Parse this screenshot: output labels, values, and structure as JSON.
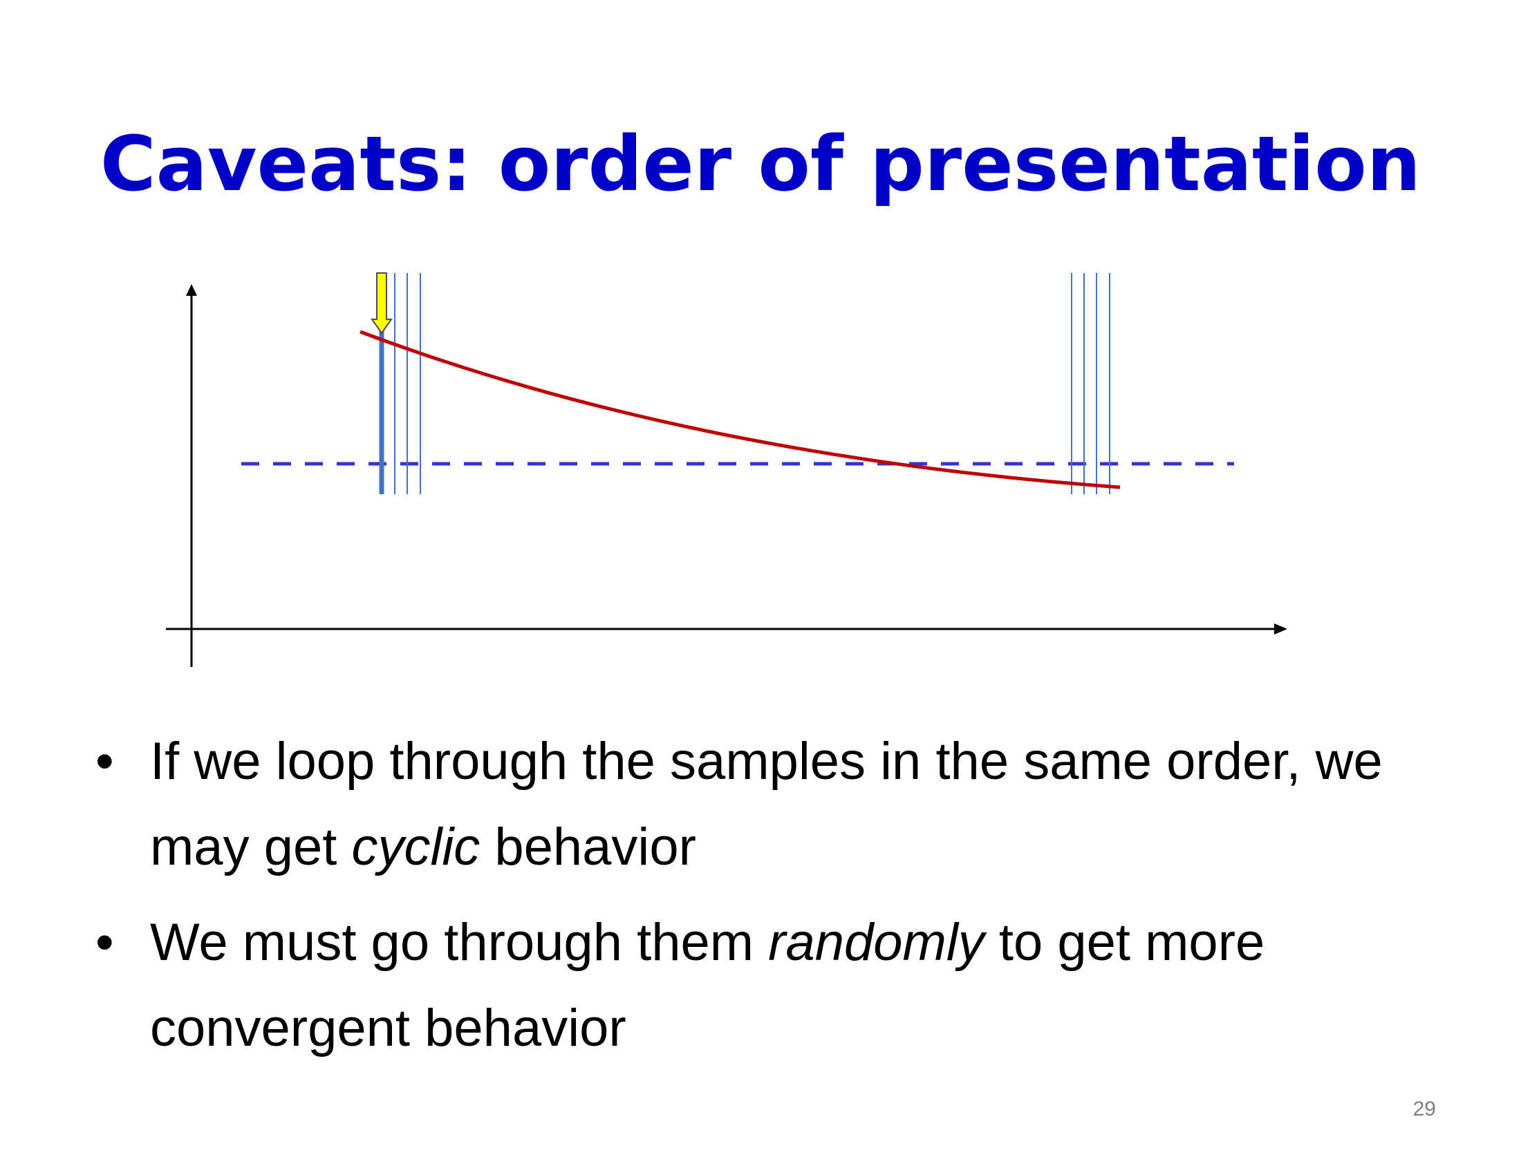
{
  "slide": {
    "title": "Caveats: order of presentation",
    "page_number": "29",
    "bullets": [
      {
        "bullet": "•",
        "parts": [
          {
            "text": "If we loop through the samples in the same order, we may get ",
            "italic": false
          },
          {
            "text": "cyclic",
            "italic": true
          },
          {
            "text": " behavior",
            "italic": false
          }
        ]
      },
      {
        "bullet": "•",
        "parts": [
          {
            "text": "We must go through them ",
            "italic": false
          },
          {
            "text": "randomly",
            "italic": true
          },
          {
            "text": " to get more convergent behavior",
            "italic": false
          }
        ]
      }
    ]
  },
  "colors": {
    "title": "#0000c8",
    "curve": "#c00000",
    "dashed_target": "#3333dd",
    "sample_lines": "#4472c4",
    "arrow_fill": "#ffff00",
    "axes": "#000000"
  },
  "icons": {
    "current_sample_marker": "down-arrow-icon"
  }
}
